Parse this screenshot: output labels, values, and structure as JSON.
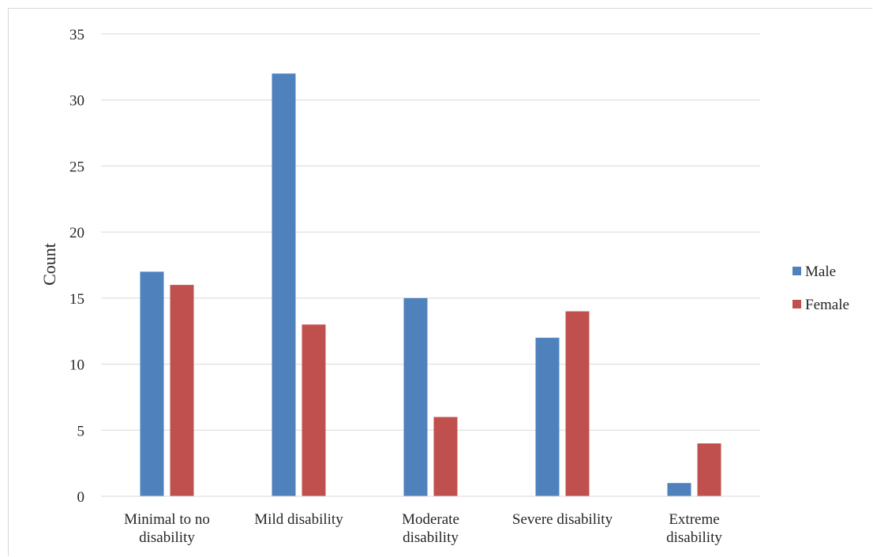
{
  "chart_data": {
    "type": "bar",
    "title": "",
    "xlabel": "",
    "ylabel": "Count",
    "ylim": [
      0,
      35
    ],
    "yticks": [
      0,
      5,
      10,
      15,
      20,
      25,
      30,
      35
    ],
    "grid": true,
    "legend_position": "right",
    "categories": [
      [
        "Minimal to no",
        "disability"
      ],
      [
        "Mild disability"
      ],
      [
        "Moderate",
        "disability"
      ],
      [
        "Severe disability"
      ],
      [
        "Extreme",
        "disability"
      ]
    ],
    "series": [
      {
        "name": "Male",
        "color": "#4f81bd",
        "values": [
          17,
          32,
          15,
          12,
          1
        ]
      },
      {
        "name": "Female",
        "color": "#c0504d",
        "values": [
          16,
          13,
          6,
          14,
          4
        ]
      }
    ]
  }
}
